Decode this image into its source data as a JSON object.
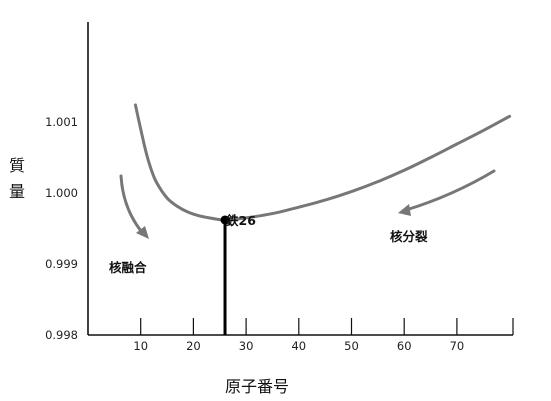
{
  "chart_data": {
    "type": "line",
    "xlabel": "原子番号",
    "ylabel": "質量",
    "ylabel_chars": [
      "質",
      "量"
    ],
    "xlim": [
      0,
      80
    ],
    "ylim": [
      0.998,
      1.0014
    ],
    "x_ticks": [
      10,
      20,
      30,
      40,
      50,
      60,
      70
    ],
    "y_ticks": [
      {
        "value": 0.998,
        "label": "0.998"
      },
      {
        "value": 0.999,
        "label": "0.999"
      },
      {
        "value": 1.0,
        "label": "1.000"
      },
      {
        "value": 1.001,
        "label": "1.001"
      }
    ],
    "grid": false,
    "series": [
      {
        "color": "#777777",
        "points": [
          {
            "x": 9,
            "y": 1.00124
          },
          {
            "x": 10,
            "y": 1.0009
          },
          {
            "x": 11,
            "y": 1.00058
          },
          {
            "x": 12,
            "y": 1.00033
          },
          {
            "x": 13,
            "y": 1.00015
          },
          {
            "x": 15,
            "y": 0.99993
          },
          {
            "x": 17,
            "y": 0.99981
          },
          {
            "x": 19,
            "y": 0.99973
          },
          {
            "x": 21,
            "y": 0.99968
          },
          {
            "x": 23,
            "y": 0.99965
          },
          {
            "x": 26,
            "y": 0.99962
          },
          {
            "x": 30,
            "y": 0.99965
          },
          {
            "x": 35,
            "y": 0.99971
          },
          {
            "x": 40,
            "y": 0.9998
          },
          {
            "x": 45,
            "y": 0.9999
          },
          {
            "x": 50,
            "y": 1.00002
          },
          {
            "x": 55,
            "y": 1.00016
          },
          {
            "x": 60,
            "y": 1.00032
          },
          {
            "x": 65,
            "y": 1.0005
          },
          {
            "x": 70,
            "y": 1.00069
          },
          {
            "x": 75,
            "y": 1.00088
          },
          {
            "x": 80,
            "y": 1.00108
          }
        ]
      }
    ],
    "highlight": {
      "x": 26,
      "y": 0.99962,
      "label": "鉄26"
    },
    "annotations": [
      {
        "text": "核融合"
      },
      {
        "text": "核分裂"
      }
    ],
    "arrow_color": "#777777"
  }
}
